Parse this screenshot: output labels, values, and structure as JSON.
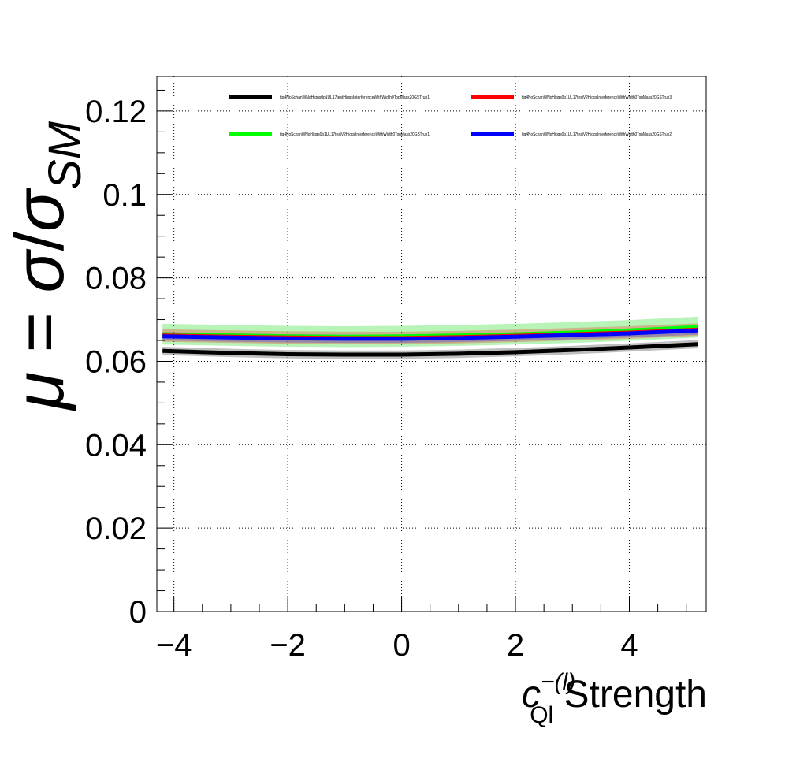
{
  "chart_data": {
    "type": "line",
    "xlabel": {
      "c": "c",
      "superscript": "−(l)",
      "subscript": "Ql",
      "suffix": " Strength"
    },
    "ylabel": {
      "mu": "μ",
      "equals": " = ",
      "sigma": "σ",
      "slash": "/",
      "sigma2": "σ",
      "subscript": "SM"
    },
    "xlim": [
      -4.3,
      5.35
    ],
    "ylim": [
      0,
      0.1283
    ],
    "xticks": [
      -4,
      -2,
      0,
      2,
      4
    ],
    "xtick_labels": [
      "−4",
      "−2",
      "0",
      "2",
      "4"
    ],
    "yticks": [
      0,
      0.02,
      0.04,
      0.06,
      0.08,
      0.1,
      0.12
    ],
    "ytick_labels": [
      "0",
      "0.02",
      "0.04",
      "0.06",
      "0.08",
      "0.1",
      "0.12"
    ],
    "grid": true,
    "legend_placement": "top",
    "x": [
      -4.2,
      -3,
      -2,
      -1,
      0,
      1,
      2,
      3,
      4,
      5.2
    ],
    "series": [
      {
        "name": "ttq4NoSchanWNoHiggs0p1UL17testHiggsInterferenceWithWidth0TopMass20GSTrun1",
        "color": "#000000",
        "values": [
          0.0625,
          0.062,
          0.0617,
          0.0616,
          0.0616,
          0.0618,
          0.0622,
          0.0627,
          0.0633,
          0.0641
        ],
        "band": 0.001,
        "band_color": "#000000"
      },
      {
        "name": "ttq4NoSchanWNoHiggs0p1UL17testV2HiggsInterferenceWithWidth0TopMass20GSTrun1",
        "color": "#00ff00",
        "values": [
          0.0665,
          0.0662,
          0.066,
          0.0659,
          0.066,
          0.0662,
          0.0665,
          0.0669,
          0.0674,
          0.0682
        ],
        "band": 0.0025,
        "band_color": "#33dd33"
      },
      {
        "name": "ttq4NoSchanWNoHiggs0p1UL17testV2HiggsInterferenceWithWidth0TopMass20GSTrun3",
        "color": "#ff0000",
        "values": [
          0.0662,
          0.0659,
          0.0657,
          0.0656,
          0.0656,
          0.0658,
          0.0661,
          0.0665,
          0.0669,
          0.0676
        ],
        "band": 0.0015,
        "band_color": "#ff0000"
      },
      {
        "name": "ttq4NoSchanWNoHiggs0p1UL17testV2HiggsInterferenceWithWidth0TopMass20GSTrun2",
        "color": "#0000ff",
        "values": [
          0.066,
          0.0657,
          0.0655,
          0.0654,
          0.0654,
          0.0656,
          0.0659,
          0.0663,
          0.0667,
          0.0674
        ],
        "band": 0.001,
        "band_color": "#0000ff"
      }
    ]
  }
}
